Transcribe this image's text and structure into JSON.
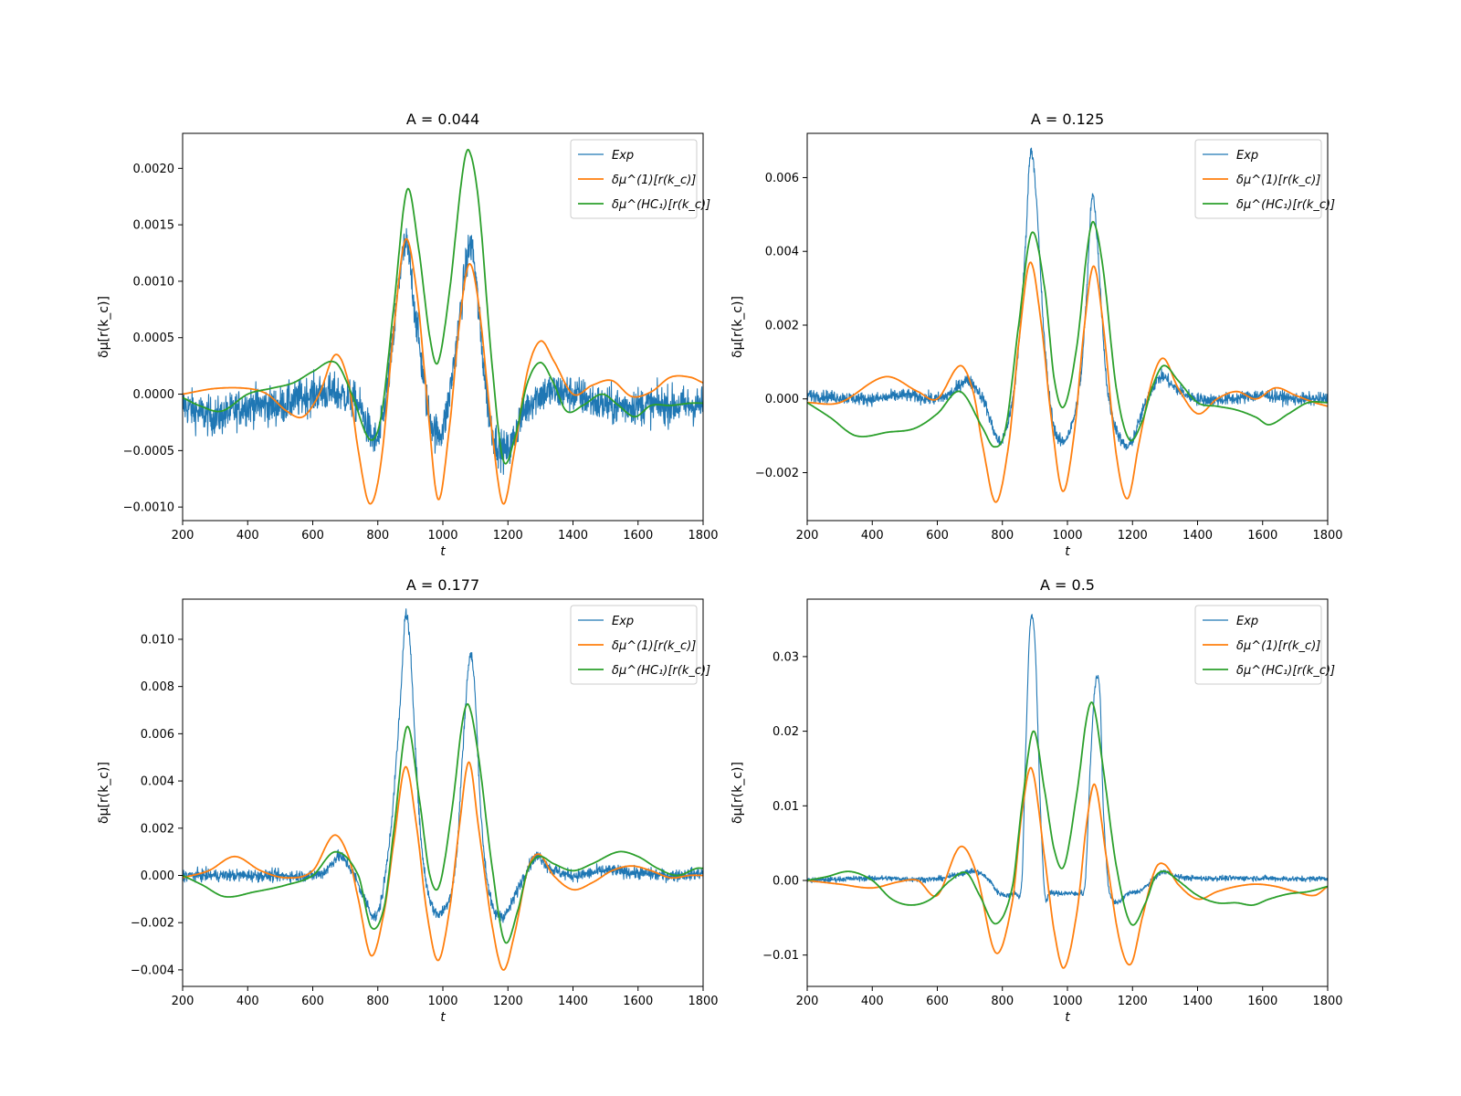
{
  "chart_data": [
    {
      "type": "line",
      "title": "A = 0.044",
      "xlabel": "t",
      "ylabel": "δμ[r(k_c)]",
      "xlim": [
        200,
        1800
      ],
      "ylim": [
        -0.00112,
        0.00231
      ],
      "xticks": [
        200,
        400,
        600,
        800,
        1000,
        1200,
        1400,
        1600,
        1800
      ],
      "xtick_labels": [
        "200",
        "400",
        "600",
        "800",
        "1000",
        "1200",
        "1400",
        "1600",
        "1800"
      ],
      "yticks": [
        -0.001,
        -0.0005,
        0.0,
        0.0005,
        0.001,
        0.0015,
        0.002
      ],
      "ytick_labels": [
        "−0.0010",
        "−0.0005",
        "0.0000",
        "0.0005",
        "0.0010",
        "0.0015",
        "0.0020"
      ],
      "legend": "top-right",
      "series": [
        {
          "name": "Exp",
          "color": "#1f77b4",
          "noise": 0.00012,
          "x": [
            200,
            300,
            400,
            500,
            600,
            680,
            740,
            800,
            840,
            870,
            890,
            920,
            960,
            1000,
            1040,
            1070,
            1090,
            1120,
            1150,
            1200,
            1240,
            1300,
            1400,
            1500,
            1600,
            1700,
            1800
          ],
          "y": [
            -0.0001,
            -0.0002,
            -0.0001,
            -0.0001,
            0.0,
            0.0,
            -0.0001,
            -0.0004,
            0.0003,
            0.0011,
            0.0013,
            0.0006,
            -0.0002,
            -0.0003,
            0.0004,
            0.0011,
            0.0013,
            0.0004,
            -0.0003,
            -0.0005,
            -0.0002,
            0.0,
            0.0,
            -0.0001,
            -0.0001,
            -0.0001,
            -0.0001
          ]
        },
        {
          "name": "δμ^(1)[r(k_c)]",
          "color": "#ff7f0e",
          "x": [
            200,
            300,
            400,
            460,
            520,
            570,
            620,
            670,
            710,
            740,
            775,
            810,
            850,
            885,
            920,
            950,
            985,
            1020,
            1050,
            1080,
            1110,
            1150,
            1185,
            1220,
            1260,
            1300,
            1340,
            1400,
            1460,
            1520,
            1580,
            1640,
            1700,
            1760,
            1800
          ],
          "y": [
            0.0,
            5e-05,
            5e-05,
            0.0,
            -0.00015,
            -0.0002,
            0.0,
            0.00035,
            0.0001,
            -0.0005,
            -0.00097,
            -0.0006,
            0.0006,
            0.00137,
            0.0009,
            0.0,
            -0.00093,
            -0.0003,
            0.0006,
            0.00115,
            0.0008,
            -0.0003,
            -0.00097,
            -0.0005,
            0.0002,
            0.00047,
            0.0003,
            0.0,
            8e-05,
            0.00012,
            -2e-05,
            2e-05,
            0.00015,
            0.00015,
            0.0001
          ]
        },
        {
          "name": "δμ^(HC₁)[r(k_c)]",
          "color": "#2ca02c",
          "x": [
            200,
            250,
            320,
            400,
            470,
            540,
            600,
            670,
            720,
            775,
            810,
            850,
            890,
            925,
            960,
            985,
            1020,
            1060,
            1080,
            1110,
            1150,
            1185,
            1220,
            1260,
            1300,
            1340,
            1380,
            1430,
            1490,
            1540,
            1590,
            1640,
            1700,
            1760,
            1800
          ],
          "y": [
            -3e-05,
            -0.0001,
            -0.00015,
            0.0,
            5e-05,
            0.0001,
            0.0002,
            0.00028,
            0.0,
            -0.0004,
            -0.0002,
            0.0008,
            0.00181,
            0.0013,
            0.0005,
            0.00028,
            0.0009,
            0.00195,
            0.00216,
            0.0017,
            0.0003,
            -0.00058,
            -0.0004,
            0.0001,
            0.00028,
            0.0001,
            -0.00015,
            -0.0001,
            0.0,
            -0.0001,
            -0.0002,
            -0.0001,
            -0.0001,
            -8e-05,
            -8e-05
          ]
        }
      ]
    },
    {
      "type": "line",
      "title": "A = 0.125",
      "xlabel": "t",
      "ylabel": "δμ[r(k_c)]",
      "xlim": [
        200,
        1800
      ],
      "ylim": [
        -0.0033,
        0.0072
      ],
      "xticks": [
        200,
        400,
        600,
        800,
        1000,
        1200,
        1400,
        1600,
        1800
      ],
      "xtick_labels": [
        "200",
        "400",
        "600",
        "800",
        "1000",
        "1200",
        "1400",
        "1600",
        "1800"
      ],
      "yticks": [
        -0.002,
        0.0,
        0.002,
        0.004,
        0.006
      ],
      "ytick_labels": [
        "−0.002",
        "0.000",
        "0.002",
        "0.004",
        "0.006"
      ],
      "legend": "top-right",
      "series": [
        {
          "name": "Exp",
          "color": "#1f77b4",
          "noise": 0.00012,
          "x": [
            200,
            400,
            500,
            600,
            650,
            690,
            740,
            780,
            800,
            840,
            870,
            885,
            900,
            930,
            960,
            1000,
            1040,
            1060,
            1075,
            1090,
            1120,
            1150,
            1180,
            1200,
            1250,
            1290,
            1330,
            1400,
            1500,
            1600,
            1700,
            1800
          ],
          "y": [
            0.0001,
            0.0,
            0.0001,
            0.0,
            0.0002,
            0.0005,
            0.0,
            -0.001,
            -0.0011,
            0.0005,
            0.004,
            0.0066,
            0.006,
            0.0015,
            -0.0008,
            -0.001,
            0.0005,
            0.003,
            0.0055,
            0.0045,
            0.0005,
            -0.0008,
            -0.0013,
            -0.0011,
            0.0001,
            0.0006,
            0.0003,
            0.0,
            0.0,
            0.0001,
            0.0,
            0.0
          ]
        },
        {
          "name": "δμ^(1)[r(k_c)]",
          "color": "#ff7f0e",
          "x": [
            200,
            300,
            440,
            540,
            600,
            670,
            710,
            740,
            780,
            820,
            850,
            885,
            920,
            950,
            985,
            1020,
            1050,
            1080,
            1110,
            1150,
            1185,
            1220,
            1260,
            1295,
            1340,
            1400,
            1460,
            1520,
            1580,
            1640,
            1700,
            1760,
            1800
          ],
          "y": [
            -0.0001,
            -0.0001,
            0.0006,
            0.0002,
            0.0,
            0.0009,
            0.0002,
            -0.0013,
            -0.0028,
            -0.0012,
            0.0015,
            0.0037,
            0.002,
            -0.0005,
            -0.0025,
            -0.001,
            0.0018,
            0.0036,
            0.002,
            -0.0015,
            -0.0027,
            -0.0012,
            0.0005,
            0.0011,
            0.0003,
            -0.0004,
            0.0,
            0.0002,
            0.0,
            0.0003,
            0.0001,
            -0.0001,
            -0.0002
          ]
        },
        {
          "name": "δμ^(HC₁)[r(k_c)]",
          "color": "#2ca02c",
          "x": [
            200,
            270,
            350,
            450,
            530,
            600,
            670,
            740,
            775,
            810,
            850,
            890,
            930,
            960,
            990,
            1030,
            1060,
            1080,
            1110,
            1150,
            1190,
            1230,
            1260,
            1295,
            1340,
            1400,
            1460,
            1520,
            1580,
            1620,
            1680,
            1740,
            1800
          ],
          "y": [
            -0.0001,
            -0.0005,
            -0.001,
            -0.0009,
            -0.0008,
            -0.0004,
            0.0002,
            -0.0008,
            -0.0013,
            -0.0008,
            0.002,
            0.0045,
            0.003,
            0.0005,
            -0.0002,
            0.0015,
            0.004,
            0.0048,
            0.0035,
            0.0003,
            -0.0011,
            -0.0006,
            0.0003,
            0.0009,
            0.0005,
            -0.0001,
            -0.0002,
            -0.0003,
            -0.0005,
            -0.0007,
            -0.0004,
            -0.0001,
            -0.0001
          ]
        }
      ]
    },
    {
      "type": "line",
      "title": "A = 0.177",
      "xlabel": "t",
      "ylabel": "δμ[r(k_c)]",
      "xlim": [
        200,
        1800
      ],
      "ylim": [
        -0.0047,
        0.0117
      ],
      "xticks": [
        200,
        400,
        600,
        800,
        1000,
        1200,
        1400,
        1600,
        1800
      ],
      "xtick_labels": [
        "200",
        "400",
        "600",
        "800",
        "1000",
        "1200",
        "1400",
        "1600",
        "1800"
      ],
      "yticks": [
        -0.004,
        -0.002,
        0.0,
        0.002,
        0.004,
        0.006,
        0.008,
        0.01
      ],
      "ytick_labels": [
        "−0.004",
        "−0.002",
        "0.000",
        "0.002",
        "0.004",
        "0.006",
        "0.008",
        "0.010"
      ],
      "legend": "top-right",
      "series": [
        {
          "name": "Exp",
          "color": "#1f77b4",
          "noise": 0.00018,
          "x": [
            200,
            400,
            600,
            640,
            680,
            720,
            760,
            800,
            840,
            870,
            885,
            900,
            930,
            960,
            1000,
            1040,
            1060,
            1080,
            1095,
            1120,
            1150,
            1180,
            1200,
            1250,
            1290,
            1330,
            1400,
            1500,
            1600,
            1700,
            1800
          ],
          "y": [
            0.0,
            0.0,
            0.0,
            0.0002,
            0.0008,
            0.0002,
            -0.001,
            -0.0016,
            0.002,
            0.0075,
            0.011,
            0.0095,
            0.002,
            -0.001,
            -0.0015,
            0.0005,
            0.005,
            0.009,
            0.0085,
            0.002,
            -0.0012,
            -0.0017,
            -0.0015,
            0.0,
            0.0008,
            0.0003,
            0.0,
            0.0002,
            0.0001,
            0.0,
            0.0001
          ]
        },
        {
          "name": "δμ^(1)[r(k_c)]",
          "color": "#ff7f0e",
          "x": [
            200,
            280,
            360,
            440,
            520,
            600,
            665,
            710,
            740,
            780,
            820,
            850,
            885,
            920,
            950,
            985,
            1020,
            1050,
            1080,
            1110,
            1150,
            1185,
            1220,
            1260,
            1295,
            1340,
            1400,
            1460,
            1520,
            1580,
            1640,
            1700,
            1760,
            1800
          ],
          "y": [
            -0.0001,
            0.0002,
            0.0008,
            0.0002,
            -0.0001,
            0.0002,
            0.0017,
            0.0008,
            -0.001,
            -0.0034,
            -0.0015,
            0.0015,
            0.0046,
            0.002,
            -0.0015,
            -0.0036,
            -0.0015,
            0.002,
            0.0048,
            0.002,
            -0.002,
            -0.004,
            -0.0025,
            0.0002,
            0.0009,
            0.0,
            -0.0006,
            -0.0003,
            0.0002,
            0.0004,
            0.0002,
            -0.0001,
            0.0,
            0.0
          ]
        },
        {
          "name": "δμ^(HC₁)[r(k_c)]",
          "color": "#2ca02c",
          "x": [
            200,
            260,
            330,
            420,
            520,
            600,
            670,
            740,
            780,
            820,
            850,
            890,
            930,
            960,
            990,
            1030,
            1060,
            1080,
            1110,
            1150,
            1190,
            1230,
            1260,
            1295,
            1340,
            1400,
            1460,
            1540,
            1600,
            1660,
            1720,
            1780,
            1800
          ],
          "y": [
            0.0,
            -0.0004,
            -0.0009,
            -0.0007,
            -0.0004,
            0.0,
            0.001,
            0.0,
            -0.0022,
            -0.0013,
            0.002,
            0.0063,
            0.003,
            0.0,
            -0.0004,
            0.003,
            0.0065,
            0.0072,
            0.005,
            0.0005,
            -0.0028,
            -0.0015,
            0.0002,
            0.0008,
            0.0005,
            0.0002,
            0.0005,
            0.001,
            0.0008,
            0.0003,
            0.0,
            0.0003,
            0.0003
          ]
        }
      ]
    },
    {
      "type": "line",
      "title": "A = 0.5",
      "xlabel": "t",
      "ylabel": "δμ[r(k_c)]",
      "xlim": [
        200,
        1800
      ],
      "ylim": [
        -0.0142,
        0.0377
      ],
      "xticks": [
        200,
        400,
        600,
        800,
        1000,
        1200,
        1400,
        1600,
        1800
      ],
      "xtick_labels": [
        "200",
        "400",
        "600",
        "800",
        "1000",
        "1200",
        "1400",
        "1600",
        "1800"
      ],
      "yticks": [
        -0.01,
        0.0,
        0.01,
        0.02,
        0.03
      ],
      "ytick_labels": [
        "−0.01",
        "0.00",
        "0.01",
        "0.02",
        "0.03"
      ],
      "legend": "top-right",
      "series": [
        {
          "name": "Exp",
          "color": "#1f77b4",
          "noise": 0.00025,
          "x": [
            200,
            400,
            600,
            680,
            720,
            760,
            790,
            840,
            860,
            870,
            885,
            900,
            915,
            930,
            945,
            1000,
            1040,
            1055,
            1070,
            1085,
            1100,
            1110,
            1130,
            1190,
            1230,
            1280,
            1300,
            1340,
            1400,
            1500,
            1600,
            1700,
            1800
          ],
          "y": [
            0.0,
            0.0003,
            0.0002,
            0.001,
            0.0012,
            0.0,
            -0.0017,
            -0.0017,
            0.0,
            0.015,
            0.034,
            0.032,
            0.012,
            -0.0016,
            -0.0017,
            -0.0017,
            -0.0016,
            0.0,
            0.015,
            0.026,
            0.025,
            0.01,
            -0.0017,
            -0.0017,
            -0.0012,
            0.0008,
            0.0012,
            0.0005,
            0.0003,
            0.0003,
            0.0003,
            0.0002,
            0.0003
          ]
        },
        {
          "name": "δμ^(1)[r(k_c)]",
          "color": "#ff7f0e",
          "x": [
            200,
            300,
            400,
            480,
            540,
            600,
            670,
            720,
            780,
            830,
            860,
            890,
            930,
            960,
            990,
            1030,
            1060,
            1085,
            1120,
            1160,
            1195,
            1230,
            1270,
            1300,
            1340,
            1400,
            1460,
            1520,
            1580,
            1640,
            1700,
            1760,
            1800
          ],
          "y": [
            0.0,
            -0.0005,
            -0.001,
            -0.0002,
            0.0,
            -0.002,
            0.0045,
            0.001,
            -0.0097,
            -0.003,
            0.009,
            0.015,
            0.003,
            -0.007,
            -0.0117,
            -0.004,
            0.008,
            0.0128,
            0.003,
            -0.008,
            -0.0112,
            -0.005,
            0.0015,
            0.0021,
            -0.0005,
            -0.0025,
            -0.0015,
            -0.0008,
            -0.0005,
            -0.0008,
            -0.0015,
            -0.002,
            -0.0008
          ]
        },
        {
          "name": "δμ^(HC₁)[r(k_c)]",
          "color": "#2ca02c",
          "x": [
            200,
            260,
            330,
            400,
            460,
            520,
            580,
            640,
            690,
            730,
            780,
            830,
            860,
            895,
            930,
            960,
            990,
            1030,
            1060,
            1080,
            1110,
            1150,
            1195,
            1240,
            1270,
            1300,
            1340,
            1400,
            1460,
            1520,
            1570,
            1620,
            1680,
            1740,
            1800
          ],
          "y": [
            0.0,
            0.0005,
            0.0012,
            0.0,
            -0.0025,
            -0.0033,
            -0.0025,
            0.0,
            0.001,
            -0.002,
            -0.0058,
            -0.001,
            0.01,
            0.02,
            0.012,
            0.004,
            0.002,
            0.012,
            0.022,
            0.0235,
            0.015,
            0.002,
            -0.0058,
            -0.003,
            0.0005,
            0.0012,
            0.0,
            -0.002,
            -0.003,
            -0.003,
            -0.0033,
            -0.0025,
            -0.0018,
            -0.0015,
            -0.0008
          ]
        }
      ]
    }
  ]
}
